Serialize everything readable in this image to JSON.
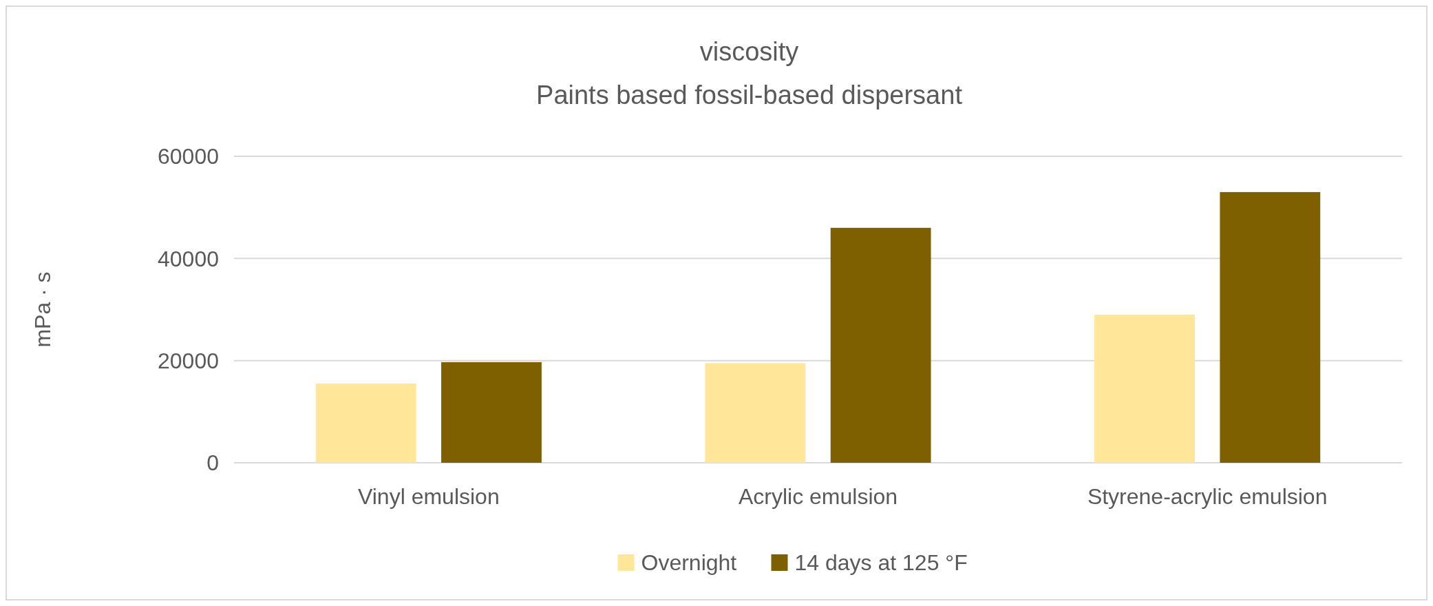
{
  "chart_data": {
    "type": "bar",
    "title": "viscosity",
    "subtitle": "Paints based fossil-based dispersant",
    "ylabel": "mPa · s",
    "categories": [
      "Vinyl emulsion",
      "Acrylic emulsion",
      "Styrene-acrylic emulsion"
    ],
    "series": [
      {
        "name": "Overnight",
        "color": "#ffe699",
        "values": [
          15500,
          19500,
          29000
        ]
      },
      {
        "name": "14 days at 125 °F",
        "color": "#7f6000",
        "values": [
          19700,
          46000,
          53000
        ]
      }
    ],
    "ylim": [
      0,
      60000
    ],
    "yticks": [
      0,
      20000,
      40000,
      60000
    ],
    "grid": "y",
    "legend": "bottom"
  }
}
